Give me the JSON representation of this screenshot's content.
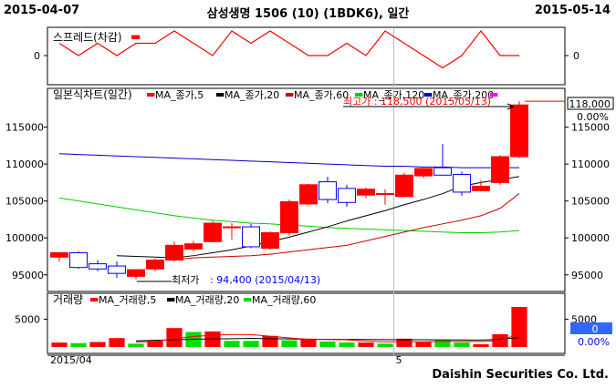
{
  "header": {
    "start_date": "2015-04-07",
    "end_date": "2015-05-14",
    "title": "삼성생명 1506 (10) (1BDK6), 일간"
  },
  "footer": {
    "brand": "Daishin Securities Co. Ltd."
  },
  "colors": {
    "up": "#ff0000",
    "down": "#0000ff",
    "ma5": "#ff0000",
    "ma20": "#000000",
    "ma60": "#cc0000",
    "ma120": "#00cc00",
    "ma200": "#0000cc",
    "vol_up": "#ff0000",
    "vol_down": "#00dd00",
    "spread": "#ff0000"
  },
  "chart_data": [
    {
      "type": "line",
      "panel": "spread",
      "legend": "스프레드(차감)",
      "y_tick_labels": [
        "0"
      ],
      "ylim": [
        -2,
        2
      ],
      "values": [
        1,
        0,
        1,
        0,
        1,
        1,
        2,
        1,
        0,
        2,
        1,
        2,
        1,
        0,
        0,
        1,
        0,
        2,
        1,
        0,
        -1,
        0,
        2,
        0,
        0
      ]
    },
    {
      "type": "candlestick",
      "panel": "price",
      "legend_title": "일본식차트(일간)",
      "legend": [
        "MA_종가,5",
        "MA_종가,20",
        "MA_종가,60",
        "MA_종가,120",
        "MA_종가,200"
      ],
      "x_labels": [
        "2015/04",
        "5"
      ],
      "y_ticks": [
        95000,
        100000,
        105000,
        110000,
        115000
      ],
      "y_tick_labels": [
        "95000",
        "100000",
        "105000",
        "110000",
        "115000"
      ],
      "ylim": [
        93000,
        120000
      ],
      "current_price": "118,000",
      "current_change": "0.00%",
      "annotations": {
        "high": "최고가 : 118,500 (2015/05/13)",
        "low": "최저가 : 94,400 (2015/04/13)"
      },
      "candles": [
        {
          "o": 97400,
          "h": 98000,
          "l": 96800,
          "c": 98000
        },
        {
          "o": 98000,
          "h": 98200,
          "l": 95800,
          "c": 96000
        },
        {
          "o": 96500,
          "h": 97000,
          "l": 95500,
          "c": 95800
        },
        {
          "o": 96200,
          "h": 96800,
          "l": 94600,
          "c": 95200
        },
        {
          "o": 94800,
          "h": 95800,
          "l": 94400,
          "c": 95700
        },
        {
          "o": 95800,
          "h": 97200,
          "l": 95500,
          "c": 97000
        },
        {
          "o": 97000,
          "h": 99500,
          "l": 96800,
          "c": 99000
        },
        {
          "o": 98500,
          "h": 99600,
          "l": 98200,
          "c": 99200
        },
        {
          "o": 99500,
          "h": 102300,
          "l": 99400,
          "c": 102000
        },
        {
          "o": 101400,
          "h": 102000,
          "l": 99800,
          "c": 101500
        },
        {
          "o": 101500,
          "h": 101900,
          "l": 98600,
          "c": 98800
        },
        {
          "o": 98600,
          "h": 100900,
          "l": 98400,
          "c": 100700
        },
        {
          "o": 100700,
          "h": 105200,
          "l": 100300,
          "c": 104900
        },
        {
          "o": 104600,
          "h": 107300,
          "l": 104400,
          "c": 107200
        },
        {
          "o": 107600,
          "h": 108300,
          "l": 104700,
          "c": 105200
        },
        {
          "o": 106700,
          "h": 107200,
          "l": 104200,
          "c": 104800
        },
        {
          "o": 105800,
          "h": 106800,
          "l": 105400,
          "c": 106600
        },
        {
          "o": 106000,
          "h": 106600,
          "l": 104500,
          "c": 106000
        },
        {
          "o": 105600,
          "h": 108800,
          "l": 105500,
          "c": 108500
        },
        {
          "o": 108400,
          "h": 109500,
          "l": 108100,
          "c": 109400
        },
        {
          "o": 109500,
          "h": 112700,
          "l": 108400,
          "c": 108500
        },
        {
          "o": 108600,
          "h": 109000,
          "l": 105700,
          "c": 106200
        },
        {
          "o": 106400,
          "h": 107800,
          "l": 106300,
          "c": 107000
        },
        {
          "o": 107500,
          "h": 111200,
          "l": 107200,
          "c": 111000
        },
        {
          "o": 111000,
          "h": 118500,
          "l": 110800,
          "c": 118000
        }
      ],
      "ma5": [
        97800,
        97400,
        96900,
        96300,
        96000,
        96000,
        96400,
        97000,
        97800,
        99300,
        99800,
        100200,
        101000,
        102200,
        103200,
        104100,
        105200,
        106000,
        106000,
        106400,
        107100,
        107400,
        107800,
        108400,
        111700
      ],
      "ma20": [
        null,
        null,
        null,
        97600,
        97500,
        97400,
        97300,
        97600,
        98000,
        98400,
        98900,
        99500,
        100100,
        100800,
        101500,
        102300,
        103000,
        103700,
        104500,
        105200,
        106000,
        107000,
        107500,
        107900,
        108300
      ],
      "ma60": [
        null,
        null,
        null,
        null,
        null,
        null,
        97100,
        97300,
        97400,
        97500,
        97600,
        97800,
        98100,
        98400,
        98700,
        99000,
        99600,
        100200,
        100800,
        101400,
        101900,
        102400,
        103000,
        104000,
        106000
      ],
      "ma120": [
        105400,
        105000,
        104600,
        104200,
        103800,
        103400,
        103000,
        102700,
        102400,
        102200,
        102000,
        101900,
        101700,
        101600,
        101400,
        101300,
        101200,
        101100,
        101000,
        100900,
        100800,
        100700,
        100700,
        100800,
        101000
      ],
      "ma200": [
        111400,
        111300,
        111200,
        111100,
        111000,
        110900,
        110800,
        110700,
        110600,
        110500,
        110400,
        110300,
        110200,
        110100,
        110000,
        109900,
        109800,
        109700,
        109700,
        109600,
        109600,
        109500,
        109500,
        109500,
        109500
      ]
    },
    {
      "type": "bar",
      "panel": "volume",
      "legend_title": "거래량(일간)",
      "legend": [
        "MA_거래량,5",
        "MA_거래량,20",
        "MA_거래량,60"
      ],
      "y_ticks": [
        5000
      ],
      "y_tick_labels": [
        "5000"
      ],
      "ylim": [
        0,
        9000
      ],
      "current_volume": "0",
      "current_change": "0.00%",
      "volumes": [
        800,
        700,
        900,
        1600,
        600,
        1100,
        3400,
        2700,
        2800,
        1100,
        1100,
        2000,
        1200,
        1500,
        1000,
        800,
        800,
        600,
        1500,
        900,
        1200,
        800,
        500,
        2300,
        7200
      ],
      "up": [
        true,
        false,
        true,
        true,
        false,
        true,
        true,
        false,
        true,
        false,
        false,
        true,
        false,
        true,
        false,
        false,
        true,
        false,
        true,
        true,
        false,
        false,
        true,
        true,
        true
      ],
      "ma5": [
        null,
        null,
        null,
        null,
        920,
        980,
        1520,
        1880,
        2120,
        2260,
        2220,
        1940,
        1640,
        1380,
        1360,
        1300,
        1060,
        940,
        940,
        920,
        1000,
        1000,
        980,
        1140,
        2400
      ],
      "ma20": [
        null,
        null,
        null,
        null,
        1100,
        1200,
        1300,
        1400,
        1450,
        1500,
        1550,
        1500,
        1450,
        1400,
        1400,
        1380,
        1350,
        1320,
        1300,
        1300,
        1280,
        1260,
        1250,
        1400,
        1700
      ]
    }
  ]
}
